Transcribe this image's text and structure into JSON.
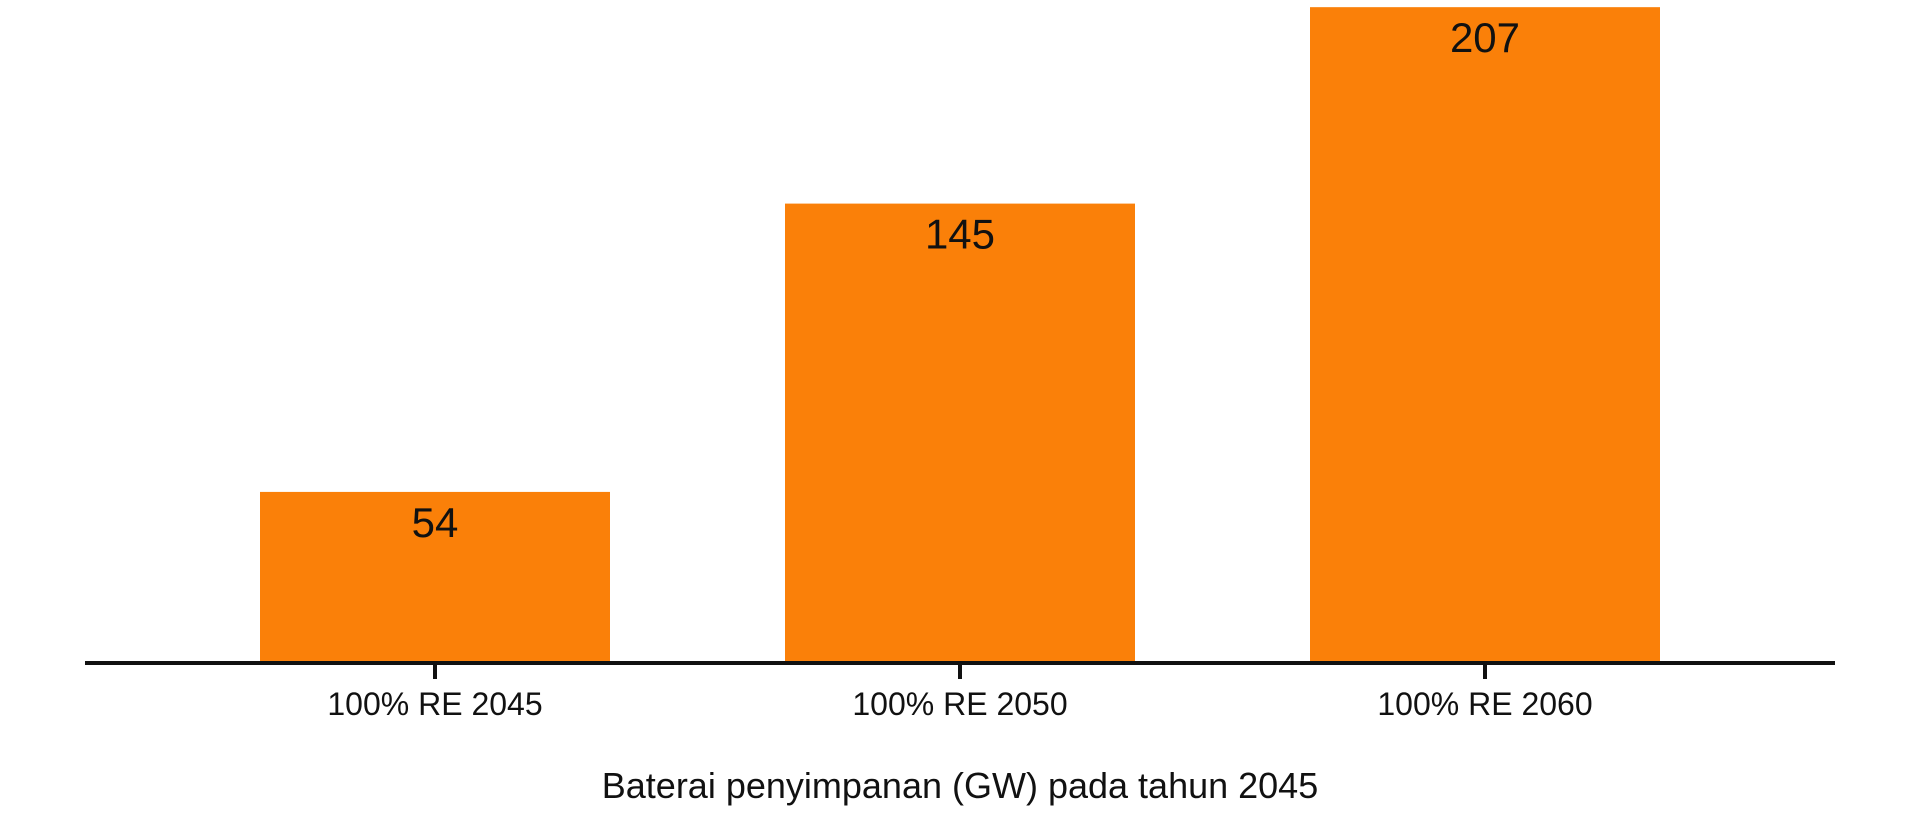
{
  "chart_data": {
    "type": "bar",
    "categories": [
      "100% RE 2045",
      "100% RE 2050",
      "100% RE 2060"
    ],
    "values": [
      54,
      145,
      207
    ],
    "title": "",
    "xlabel": "Baterai penyimpanan (GW) pada tahun 2045",
    "ylabel": "",
    "ylim": [
      0,
      208
    ],
    "grid": false,
    "legend": "none",
    "bar_color": "#FA8009",
    "axis_color": "#111111"
  }
}
